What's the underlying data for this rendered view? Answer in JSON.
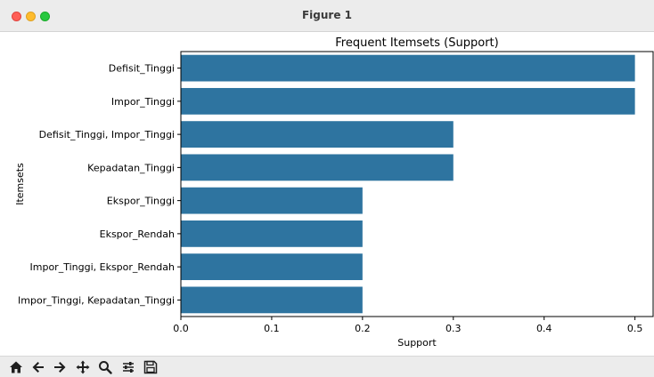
{
  "window": {
    "title": "Figure 1"
  },
  "toolbar": {
    "buttons": [
      {
        "name": "home-icon"
      },
      {
        "name": "back-arrow-icon"
      },
      {
        "name": "forward-arrow-icon"
      },
      {
        "name": "pan-icon"
      },
      {
        "name": "zoom-icon"
      },
      {
        "name": "configure-subplots-icon"
      },
      {
        "name": "save-icon"
      }
    ]
  },
  "chart_data": {
    "type": "bar",
    "orientation": "horizontal",
    "title": "Frequent Itemsets (Support)",
    "xlabel": "Support",
    "ylabel": "Itemsets",
    "categories": [
      "Defisit_Tinggi",
      "Impor_Tinggi",
      "Defisit_Tinggi, Impor_Tinggi",
      "Kepadatan_Tinggi",
      "Ekspor_Tinggi",
      "Ekspor_Rendah",
      "Impor_Tinggi, Ekspor_Rendah",
      "Impor_Tinggi, Kepadatan_Tinggi"
    ],
    "values": [
      0.5,
      0.5,
      0.3,
      0.3,
      0.2,
      0.2,
      0.2,
      0.2
    ],
    "xlim": [
      0.0,
      0.52
    ],
    "xticks": [
      "0.0",
      "0.1",
      "0.2",
      "0.3",
      "0.4",
      "0.5"
    ],
    "bar_color": "#2e74a0",
    "grid": false,
    "legend": "none"
  }
}
